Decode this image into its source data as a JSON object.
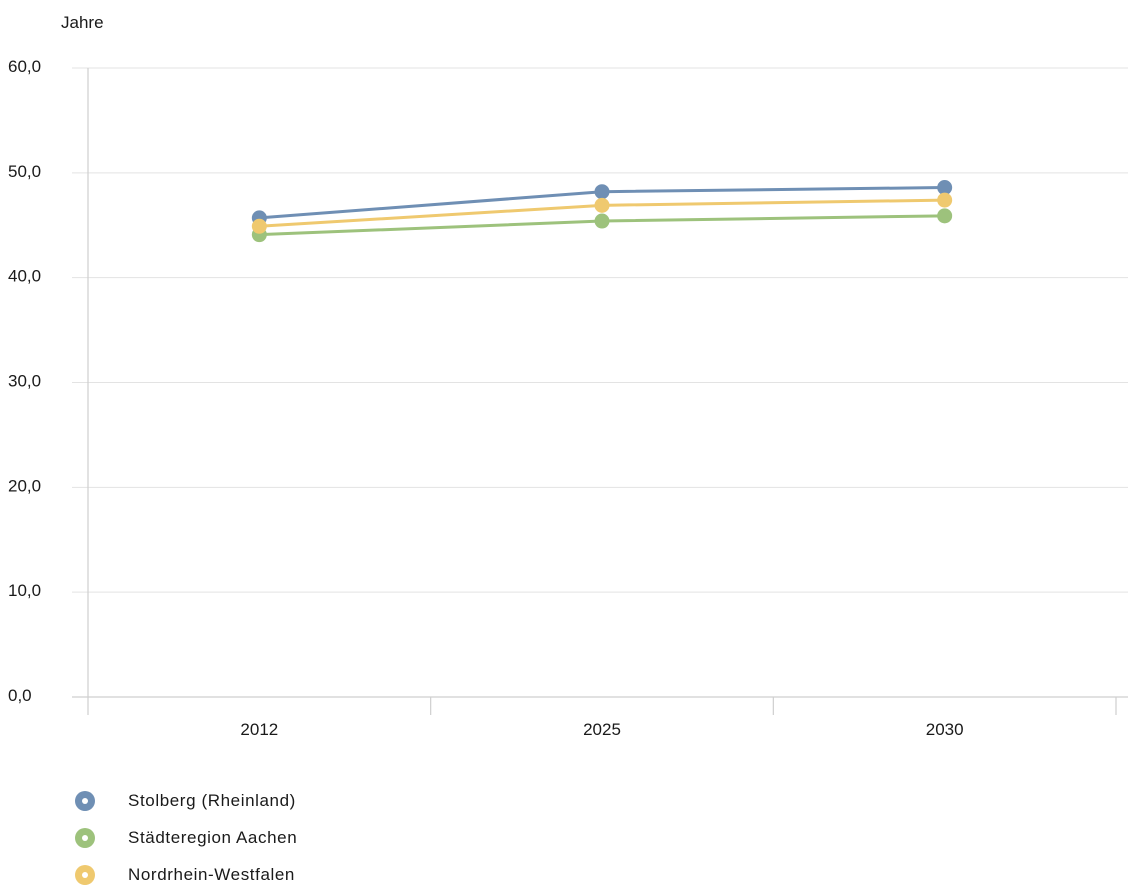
{
  "chart_data": {
    "type": "line",
    "y_unit_label": "Jahre",
    "categories": [
      "2012",
      "2025",
      "2030"
    ],
    "ylim": [
      0,
      60
    ],
    "y_ticks": [
      "0,0",
      "10,0",
      "20,0",
      "30,0",
      "40,0",
      "50,0",
      "60,0"
    ],
    "grid": true,
    "legend_position": "bottom-left",
    "series": [
      {
        "name": "Stolberg (Rheinland)",
        "color": "#6f8fb4",
        "values": [
          45.7,
          48.2,
          48.6
        ]
      },
      {
        "name": "Städteregion Aachen",
        "color": "#9dc27c",
        "values": [
          44.1,
          45.4,
          45.9
        ]
      },
      {
        "name": "Nordrhein-Westfalen",
        "color": "#efc96f",
        "values": [
          44.9,
          46.9,
          47.4
        ]
      }
    ]
  }
}
